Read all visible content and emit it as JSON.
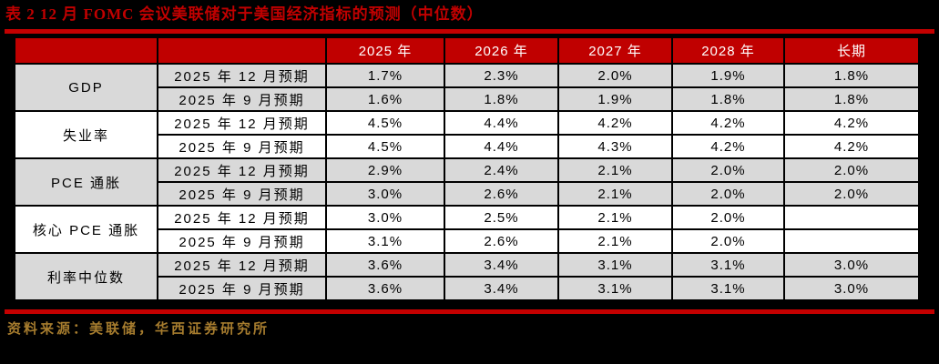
{
  "page": {
    "background": "#000000"
  },
  "title": "表 2 12 月 FOMC 会议美联储对于美国经济指标的预测（中位数）",
  "source": "资料来源：美联储，华西证券研究所",
  "colors": {
    "title_red": "#c00000",
    "rule_red": "#c40000",
    "header_bg": "#c00000",
    "header_text": "#ffffff",
    "band_gray": "#d9d9d9",
    "band_white": "#ffffff",
    "cell_text": "#000000",
    "source_gold": "#a67c2e"
  },
  "table": {
    "columns": [
      "",
      "",
      "2025 年",
      "2026 年",
      "2027 年",
      "2028 年",
      "长期"
    ],
    "groups": [
      {
        "indicator": "GDP",
        "band": "gray",
        "rows": [
          {
            "period": "2025 年 12 月预期",
            "values": [
              "1.7%",
              "2.3%",
              "2.0%",
              "1.9%",
              "1.8%"
            ]
          },
          {
            "period": "2025 年 9 月预期",
            "values": [
              "1.6%",
              "1.8%",
              "1.9%",
              "1.8%",
              "1.8%"
            ]
          }
        ]
      },
      {
        "indicator": "失业率",
        "band": "white",
        "rows": [
          {
            "period": "2025 年 12 月预期",
            "values": [
              "4.5%",
              "4.4%",
              "4.2%",
              "4.2%",
              "4.2%"
            ]
          },
          {
            "period": "2025 年 9 月预期",
            "values": [
              "4.5%",
              "4.4%",
              "4.3%",
              "4.2%",
              "4.2%"
            ]
          }
        ]
      },
      {
        "indicator": "PCE 通胀",
        "band": "gray",
        "rows": [
          {
            "period": "2025 年 12 月预期",
            "values": [
              "2.9%",
              "2.4%",
              "2.1%",
              "2.0%",
              "2.0%"
            ]
          },
          {
            "period": "2025 年 9 月预期",
            "values": [
              "3.0%",
              "2.6%",
              "2.1%",
              "2.0%",
              "2.0%"
            ]
          }
        ]
      },
      {
        "indicator": "核心 PCE 通胀",
        "band": "white",
        "rows": [
          {
            "period": "2025 年 12 月预期",
            "values": [
              "3.0%",
              "2.5%",
              "2.1%",
              "2.0%",
              ""
            ]
          },
          {
            "period": "2025 年 9 月预期",
            "values": [
              "3.1%",
              "2.6%",
              "2.1%",
              "2.0%",
              ""
            ]
          }
        ]
      },
      {
        "indicator": "利率中位数",
        "band": "gray",
        "rows": [
          {
            "period": "2025 年 12 月预期",
            "values": [
              "3.6%",
              "3.4%",
              "3.1%",
              "3.1%",
              "3.0%"
            ]
          },
          {
            "period": "2025 年 9 月预期",
            "values": [
              "3.6%",
              "3.4%",
              "3.1%",
              "3.1%",
              "3.0%"
            ]
          }
        ]
      }
    ]
  }
}
